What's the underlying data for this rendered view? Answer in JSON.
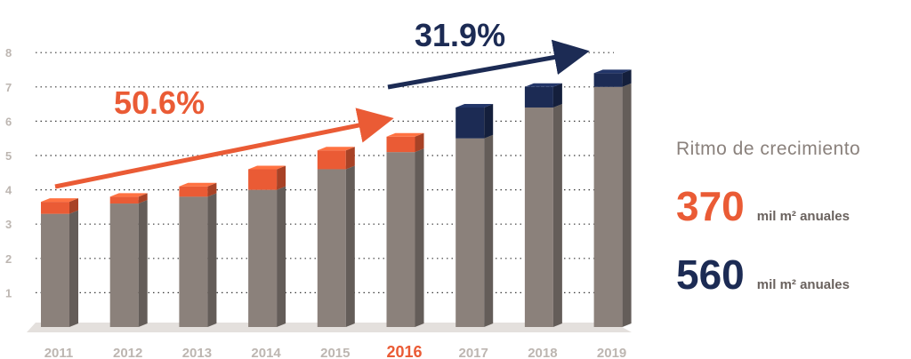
{
  "chart_data": {
    "type": "bar",
    "stacked": true,
    "categories": [
      "2011",
      "2012",
      "2013",
      "2014",
      "2015",
      "2016",
      "2017",
      "2018",
      "2019"
    ],
    "highlight_category": "2016",
    "yticks": [
      "1",
      "2",
      "3",
      "4",
      "5",
      "6",
      "7",
      "8"
    ],
    "ylim": [
      0,
      8
    ],
    "grid": "dotted horizontal",
    "series": [
      {
        "values": [
          3.3,
          3.6,
          3.8,
          4.0,
          4.6,
          5.1,
          5.5,
          6.4,
          7.0
        ]
      },
      {
        "values": [
          0.35,
          0.2,
          0.3,
          0.6,
          0.55,
          0.45,
          0.0,
          0.0,
          0.0
        ]
      },
      {
        "values": [
          0.0,
          0.0,
          0.0,
          0.0,
          0.0,
          0.0,
          0.9,
          0.6,
          0.4
        ]
      }
    ],
    "annotations": [
      {
        "text": "50.6%",
        "color": "#ea5b35"
      },
      {
        "text": "31.9%",
        "color": "#1c2b54"
      }
    ],
    "colors": {
      "base": "#8b817b",
      "orange": "#ea5b35",
      "navy": "#1c2b54",
      "axis_text": "#bdb6b1",
      "highlight": "#ea5b35"
    }
  },
  "side": {
    "title": "Ritmo de crecimiento",
    "stats": [
      {
        "value": "370",
        "unit": "mil m² anuales",
        "color": "#ea5b35"
      },
      {
        "value": "560",
        "unit": "mil m² anuales",
        "color": "#1c2b54"
      }
    ]
  }
}
